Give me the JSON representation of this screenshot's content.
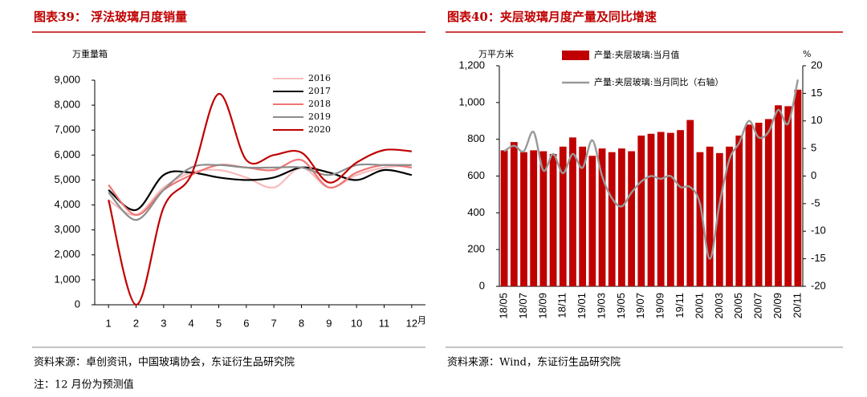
{
  "chart_data": [
    {
      "type": "line",
      "title": "图表39：  浮法玻璃月度销量",
      "y_label": "万重量箱",
      "x_label": "月",
      "x": [
        1,
        2,
        3,
        4,
        5,
        6,
        7,
        8,
        9,
        10,
        11,
        12
      ],
      "xlim": [
        0.5,
        12.5
      ],
      "xticks": [
        1,
        2,
        3,
        4,
        5,
        6,
        7,
        8,
        9,
        10,
        11,
        12
      ],
      "ylim": [
        0,
        9000
      ],
      "yticks": [
        0,
        {
          "value": 1000,
          "label": "1,000"
        },
        {
          "value": 2000,
          "label": "2,000"
        },
        {
          "value": 3000,
          "label": "3,000"
        },
        {
          "value": 4000,
          "label": "4,000"
        },
        {
          "value": 5000,
          "label": "5,000"
        },
        {
          "value": 6000,
          "label": "6,000"
        },
        {
          "value": 7000,
          "label": "7,000"
        },
        {
          "value": 8000,
          "label": "8,000"
        },
        {
          "value": 9000,
          "label": "9,000"
        }
      ],
      "legend": "top-right",
      "series": [
        {
          "name": "2016",
          "color": "#f7bcbc",
          "values": [
            4200,
            3600,
            4700,
            5300,
            5400,
            5100,
            4700,
            5500,
            4700,
            5200,
            5500,
            5600
          ]
        },
        {
          "name": "2017",
          "color": "#000000",
          "values": [
            4600,
            3800,
            5200,
            5300,
            5100,
            5000,
            5100,
            5500,
            5300,
            5000,
            5400,
            5200
          ]
        },
        {
          "name": "2018",
          "color": "#f07474",
          "values": [
            4800,
            3600,
            4600,
            5200,
            5600,
            5500,
            5400,
            5800,
            4700,
            5300,
            5600,
            5500
          ]
        },
        {
          "name": "2019",
          "color": "#8c8c8c",
          "values": [
            4500,
            3400,
            4600,
            5500,
            5600,
            5500,
            5500,
            5500,
            5200,
            5600,
            5600,
            5600
          ]
        },
        {
          "name": "2020",
          "color": "#c00000",
          "values": [
            4200,
            0,
            3900,
            5200,
            8450,
            5800,
            6000,
            6100,
            4900,
            5700,
            6200,
            6150
          ]
        }
      ]
    },
    {
      "type": "bar-line",
      "title": "图表40：夹层玻璃月度产量及同比增速",
      "y_label": "万平方米",
      "y2_label": "%",
      "categories": [
        "18/05",
        null,
        "18/07",
        null,
        "18/09",
        null,
        "18/11",
        null,
        "19/01",
        null,
        "19/03",
        null,
        "19/05",
        null,
        "19/07",
        null,
        "19/09",
        null,
        "19/11",
        null,
        "20/01",
        null,
        "20/03",
        null,
        "20/05",
        null,
        "20/07",
        null,
        "20/09",
        null,
        "20/11"
      ],
      "ylim": [
        0,
        1200
      ],
      "yticks": [
        0,
        200,
        400,
        600,
        800,
        {
          "value": 1000,
          "label": "1,000"
        },
        {
          "value": 1200,
          "label": "1,200"
        }
      ],
      "y2lim": [
        -20,
        20
      ],
      "y2ticks": [
        -20,
        -15,
        -10,
        -5,
        0,
        5,
        10,
        15,
        20
      ],
      "legend": "top",
      "series": [
        {
          "name": "产量:夹层玻璃:当月值",
          "color": "#c00000",
          "type": "bar",
          "values": [
            740,
            785,
            730,
            740,
            735,
            720,
            760,
            810,
            760,
            710,
            750,
            730,
            750,
            735,
            820,
            830,
            840,
            835,
            850,
            905,
            730,
            760,
            725,
            760,
            820,
            880,
            890,
            910,
            985,
            980,
            1070
          ]
        },
        {
          "name": "产量:夹层玻璃:当月同比（右轴）",
          "color": "#999999",
          "type": "line",
          "axis": "y2",
          "values": [
            4.5,
            5.5,
            4.5,
            8,
            1,
            4,
            0.5,
            4,
            1.5,
            6.5,
            0,
            -4,
            -5.5,
            -3,
            -1,
            0,
            -0.5,
            0,
            -2,
            -2,
            -5,
            -15,
            -5,
            3,
            6,
            10,
            7,
            8,
            12,
            9.5,
            17.5
          ]
        }
      ]
    }
  ],
  "sources": [
    "资料来源：卓创资讯，中国玻璃协会，东证衍生品研究院",
    "资料来源：Wind，东证衍生品研究院"
  ],
  "note": "注：12 月份为预测值"
}
